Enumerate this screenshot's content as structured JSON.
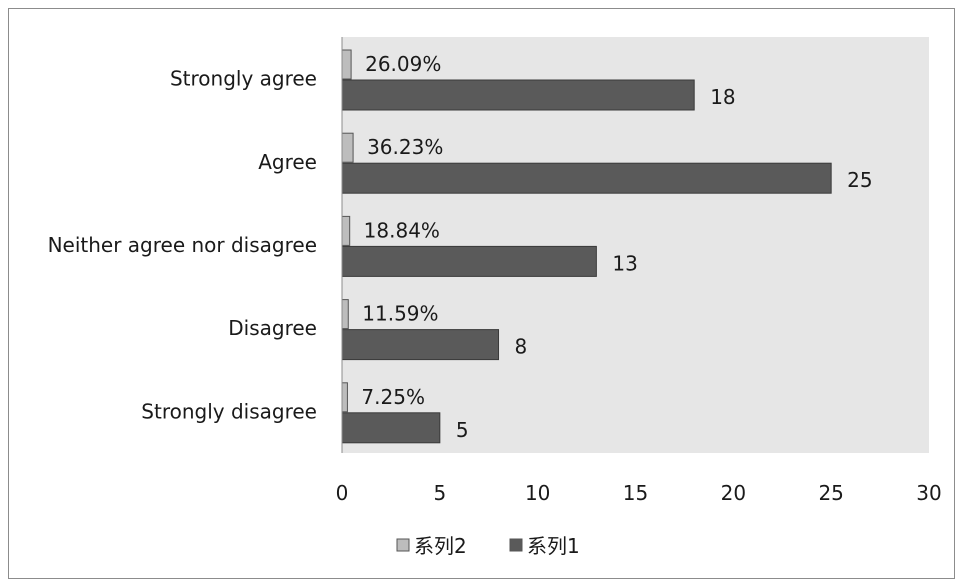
{
  "chart_data": {
    "type": "bar",
    "orientation": "horizontal",
    "categories": [
      "Strongly agree",
      "Agree",
      "Neither agree nor disagree",
      "Disagree",
      "Strongly disagree"
    ],
    "series": [
      {
        "name": "系列2",
        "values": [
          0.2609,
          0.3623,
          0.1884,
          0.1159,
          0.0725
        ],
        "labels": [
          "26.09%",
          "36.23%",
          "18.84%",
          "11.59%",
          "7.25%"
        ],
        "color": "#bdbdbd"
      },
      {
        "name": "系列1",
        "values": [
          18,
          25,
          13,
          8,
          5
        ],
        "labels": [
          "18",
          "25",
          "13",
          "8",
          "5"
        ],
        "color": "#5a5a5a"
      }
    ],
    "xlim": [
      0,
      30
    ],
    "xticks": [
      "0",
      "5",
      "10",
      "15",
      "20",
      "25",
      "30"
    ],
    "title": "",
    "xlabel": "",
    "ylabel": "",
    "grid": false,
    "plot_background": "#e6e6e6",
    "legend_position": "bottom"
  }
}
